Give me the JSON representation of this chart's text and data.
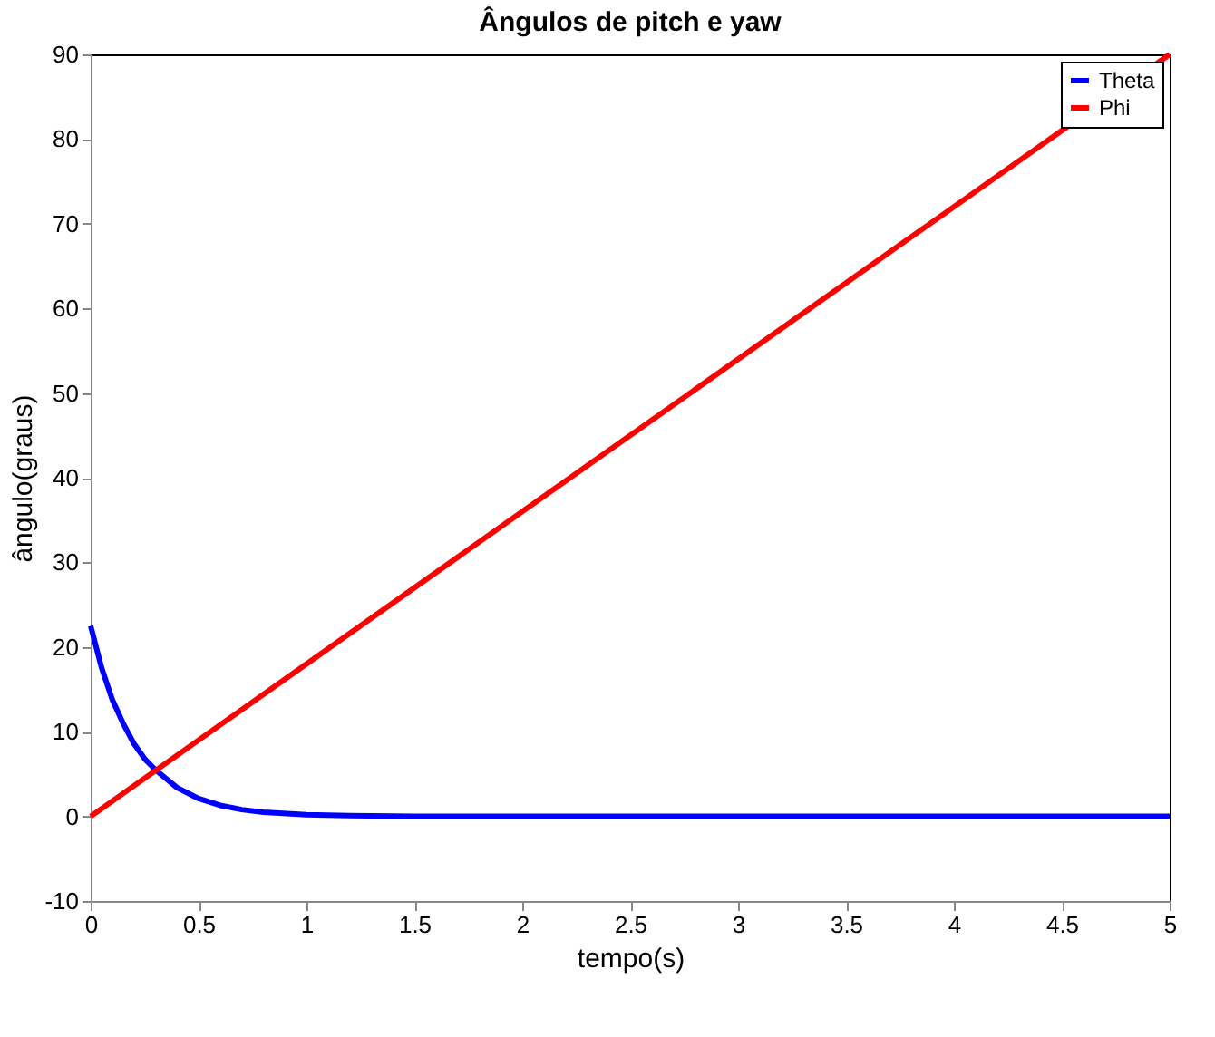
{
  "chart_data": {
    "type": "line",
    "title": "Ângulos de pitch e yaw",
    "xlabel": "tempo(s)",
    "ylabel": "ângulo(graus)",
    "xlim": [
      0,
      5
    ],
    "xticks": [
      0,
      0.5,
      1,
      1.5,
      2,
      2.5,
      3,
      3.5,
      4,
      4.5,
      5
    ],
    "ylim": [
      -10,
      90
    ],
    "yticks": [
      -10,
      0,
      10,
      20,
      30,
      40,
      50,
      60,
      70,
      80,
      90
    ],
    "grid": false,
    "legend": "top right",
    "marker": "none",
    "line_style": "solid",
    "series": [
      {
        "name": "Theta",
        "color": "#0000ff",
        "x": [
          0,
          0.05,
          0.1,
          0.15,
          0.2,
          0.25,
          0.3,
          0.4,
          0.5,
          0.6,
          0.7,
          0.8,
          1.0,
          1.2,
          1.5,
          2,
          3,
          4,
          5
        ],
        "values": [
          22.5,
          17.6,
          13.8,
          11,
          8.6,
          6.8,
          5.5,
          3.4,
          2.1,
          1.3,
          0.8,
          0.5,
          0.2,
          0.1,
          0,
          0,
          0,
          0,
          0
        ]
      },
      {
        "name": "Phi",
        "color": "#ff0000",
        "x": [
          0,
          5
        ],
        "values": [
          0,
          90
        ]
      }
    ]
  }
}
